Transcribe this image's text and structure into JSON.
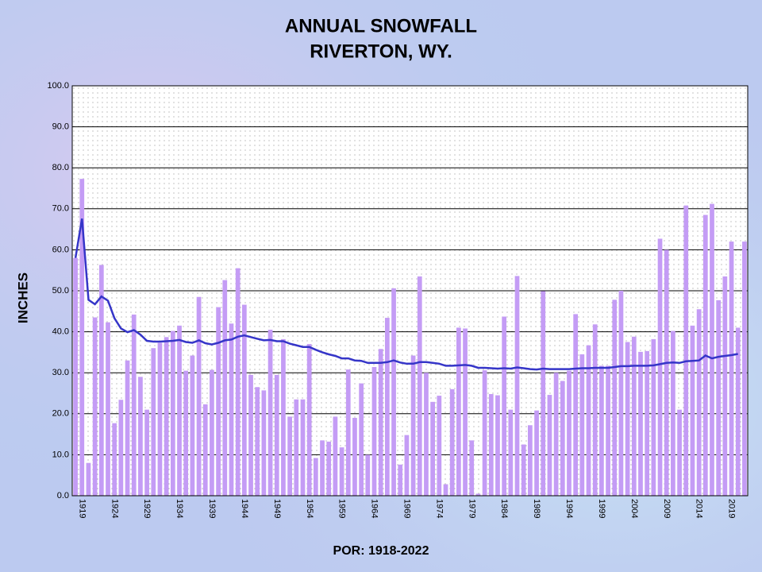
{
  "chart_data": {
    "type": "bar",
    "title": "ANNUAL SNOWFALL",
    "subtitle": "RIVERTON, WY.",
    "y_label": "INCHES",
    "x_label": "POR: 1918-2022",
    "categories": [
      null,
      "1919",
      null,
      null,
      null,
      null,
      "1924",
      null,
      null,
      null,
      null,
      "1929",
      null,
      null,
      null,
      null,
      "1934",
      null,
      null,
      null,
      null,
      "1939",
      null,
      null,
      null,
      null,
      "1944",
      null,
      null,
      null,
      null,
      "1949",
      null,
      null,
      null,
      null,
      "1954",
      null,
      null,
      null,
      null,
      "1959",
      null,
      null,
      null,
      null,
      "1964",
      null,
      null,
      null,
      null,
      "1969",
      null,
      null,
      null,
      null,
      "1974",
      null,
      null,
      null,
      null,
      "1979",
      null,
      null,
      null,
      null,
      "1984",
      null,
      null,
      null,
      null,
      "1989",
      null,
      null,
      null,
      null,
      "1994",
      null,
      null,
      null,
      null,
      "1999",
      null,
      null,
      null,
      null,
      "2004",
      null,
      null,
      null,
      null,
      "2009",
      null,
      null,
      null,
      null,
      "2014",
      null,
      null,
      null,
      null,
      "2019",
      null,
      null
    ],
    "series": [
      {
        "type": "bar",
        "color": "#c49cf5",
        "values": [
          58,
          77.3,
          8,
          43.5,
          56.3,
          42.3,
          17.7,
          23.4,
          33,
          44.2,
          29,
          21,
          36,
          37.3,
          38.7,
          40.2,
          41.5,
          30.5,
          34.2,
          48.5,
          22.3,
          30.7,
          46,
          52.6,
          42,
          55.5,
          46.6,
          29.5,
          26.5,
          25.7,
          40.5,
          29.5,
          38.2,
          19.3,
          23.5,
          23.5,
          37,
          9.2,
          13.5,
          13.2,
          19.3,
          11.8,
          30.8,
          19,
          27.4,
          10,
          31.4,
          35.8,
          43.4,
          50.6,
          7.6,
          14.8,
          34.2,
          53.5,
          30,
          22.9,
          24.4,
          2.8,
          26,
          41,
          40.8,
          13.5,
          0.5,
          30.6,
          24.8,
          24.5,
          43.7,
          21,
          53.6,
          12.5,
          17.2,
          20.8,
          49.9,
          24.6,
          30,
          28,
          30.5,
          44.3,
          34.5,
          36.7,
          41.8,
          31.7,
          31.7,
          47.8,
          50,
          37.5,
          38.8,
          35.1,
          35.3,
          38.2,
          62.7,
          60,
          40.2,
          21,
          70.8,
          41.5,
          45.5,
          68.5,
          71.2,
          47.7,
          53.5,
          62,
          41,
          62
        ]
      },
      {
        "type": "line",
        "color": "#3535c8",
        "values": [
          58,
          67.6,
          47.8,
          46.7,
          48.6,
          47.6,
          43.3,
          40.8,
          39.9,
          40.4,
          39.3,
          37.8,
          37.6,
          37.6,
          37.7,
          37.8,
          38,
          37.5,
          37.3,
          37.9,
          37.2,
          36.9,
          37.3,
          37.9,
          38.1,
          38.8,
          39.1,
          38.7,
          38.3,
          37.9,
          38,
          37.7,
          37.7,
          37.1,
          36.7,
          36.3,
          36.3,
          35.6,
          35,
          34.5,
          34.1,
          33.5,
          33.5,
          33,
          32.9,
          32.4,
          32.4,
          32.4,
          32.6,
          33,
          32.5,
          32.2,
          32.2,
          32.6,
          32.6,
          32.4,
          32.2,
          31.7,
          31.7,
          31.8,
          31.9,
          31.7,
          31.2,
          31.2,
          31.1,
          31,
          31.1,
          31,
          31.3,
          31.1,
          30.9,
          30.8,
          31,
          30.9,
          30.9,
          30.9,
          30.9,
          31,
          31.1,
          31.1,
          31.2,
          31.2,
          31.2,
          31.4,
          31.6,
          31.6,
          31.7,
          31.7,
          31.7,
          31.8,
          32.1,
          32.4,
          32.5,
          32.4,
          32.8,
          32.9,
          33,
          34.2,
          33.5,
          33.9,
          34.1,
          34.3,
          34.6,
          null
        ]
      }
    ],
    "ylim": [
      0,
      100
    ],
    "yticks": [
      {
        "value": 0,
        "label": "0.0"
      },
      {
        "value": 10,
        "label": "10.0"
      },
      {
        "value": 20,
        "label": "20.0"
      },
      {
        "value": 30,
        "label": "30.0"
      },
      {
        "value": 40,
        "label": "40.0"
      },
      {
        "value": 50,
        "label": "50.0"
      },
      {
        "value": 60,
        "label": "60.0"
      },
      {
        "value": 70,
        "label": "70.0"
      },
      {
        "value": 80,
        "label": "80.0"
      },
      {
        "value": 90,
        "label": "90.0"
      },
      {
        "value": 100,
        "label": "100.0"
      }
    ],
    "grid": true
  }
}
